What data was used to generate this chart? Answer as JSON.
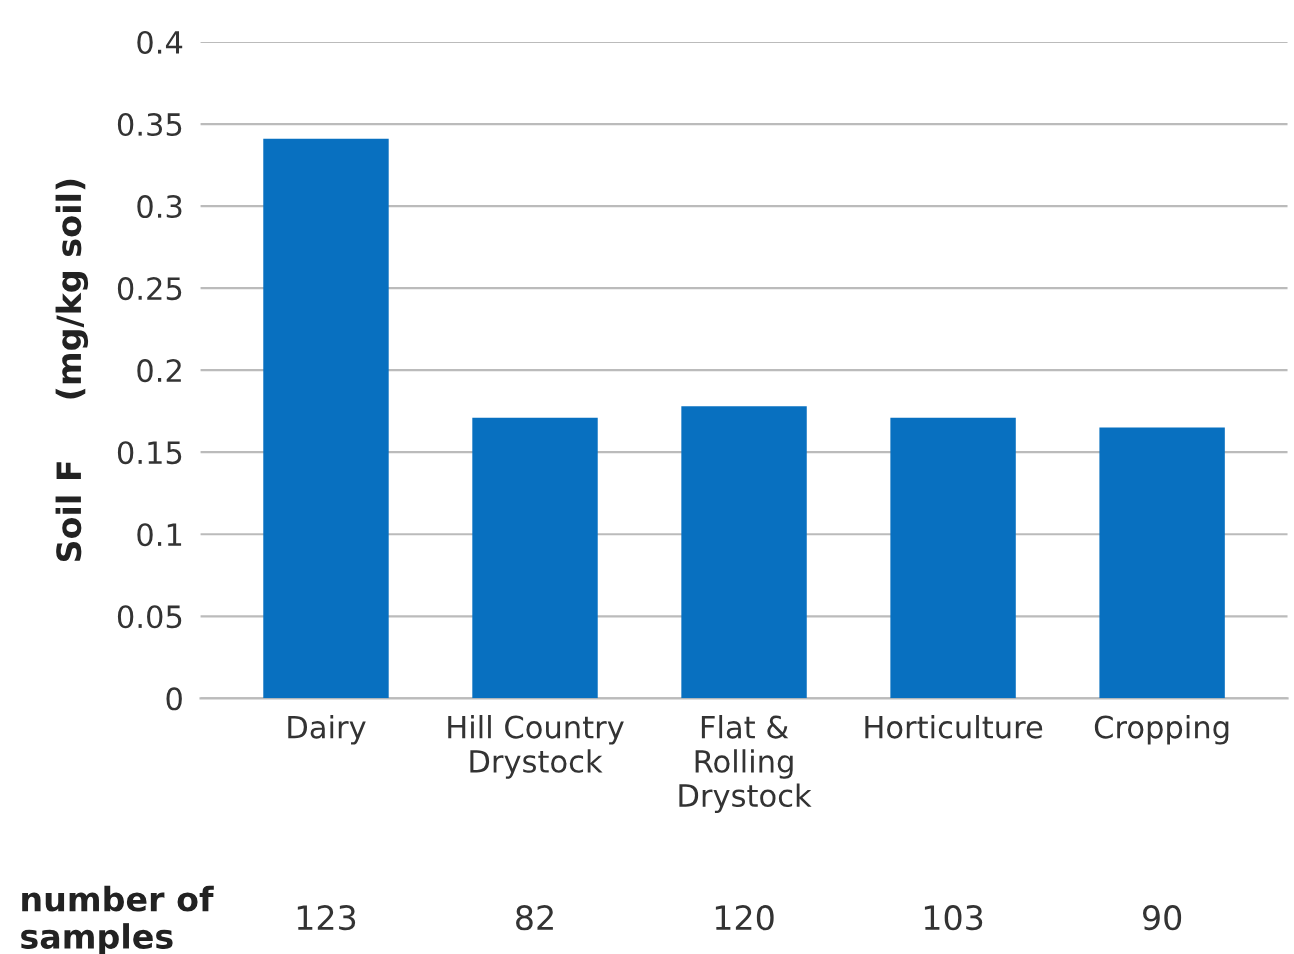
{
  "chart_data": {
    "type": "bar",
    "categories": [
      "Dairy",
      "Hill Country\nDrystock",
      "Flat &\nRolling\nDrystock",
      "Horticulture",
      "Cropping"
    ],
    "values": [
      0.341,
      0.171,
      0.178,
      0.171,
      0.165
    ],
    "color": "#0870c0",
    "ylabel": "Soil F     (mg/kg soil)",
    "ylim": [
      0,
      0.4
    ],
    "yticks": [
      0,
      0.05,
      0.1,
      0.15,
      0.2,
      0.25,
      0.3,
      0.35,
      0.4
    ],
    "grid": "y",
    "annotations": [
      "number of\nsamples",
      "123",
      "82",
      "120",
      "103",
      "90"
    ]
  }
}
